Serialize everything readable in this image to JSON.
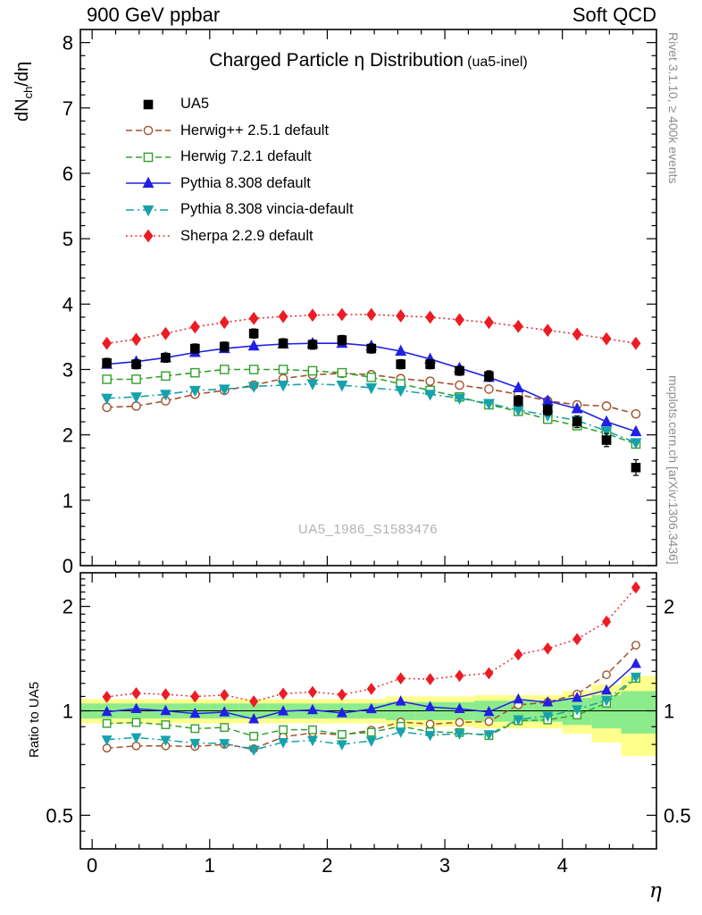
{
  "header": {
    "left": "900 GeV ppbar",
    "right": "Soft QCD"
  },
  "title": {
    "main": "Charged Particle η Distribution",
    "suffix": "(ua5-inel)"
  },
  "watermark": "UA5_1986_S1583476",
  "side_notes": {
    "top_right": "Rivet 3.1.10, ≥ 400k events",
    "bottom_right": "mcplots.cern.ch [arXiv:1306.3436]"
  },
  "axes": {
    "y_main": {
      "pre": "dN",
      "sub": "ch",
      "post": "/dη"
    },
    "y_ratio_label": "Ratio to UA5",
    "x_label": "η",
    "x_ticks": [
      0,
      1,
      2,
      3,
      4
    ],
    "y_main_ticks": [
      0,
      1,
      2,
      3,
      4,
      5,
      6,
      7,
      8
    ],
    "y_ratio_ticks": [
      0.5,
      1,
      2
    ]
  },
  "chart_data": {
    "type": "line",
    "title": "Charged Particle η Distribution (ua5-inel)",
    "xlabel": "η",
    "ylabel": "dN_ch/dη",
    "x_range": [
      -0.1,
      4.8
    ],
    "main_panel": {
      "ylim": [
        0,
        8.2
      ],
      "scale": "linear"
    },
    "ratio_panel": {
      "ylim": [
        0.4,
        2.5
      ],
      "scale": "log",
      "label": "Ratio to UA5",
      "reference": "UA5"
    },
    "x": [
      0.125,
      0.375,
      0.625,
      0.875,
      1.125,
      1.375,
      1.625,
      1.875,
      2.125,
      2.375,
      2.625,
      2.875,
      3.125,
      3.375,
      3.625,
      3.875,
      4.125,
      4.375,
      4.625
    ],
    "series": [
      {
        "name": "UA5",
        "color": "#000000",
        "marker": "square-filled",
        "line": "none",
        "values": [
          3.1,
          3.08,
          3.18,
          3.32,
          3.35,
          3.55,
          3.4,
          3.38,
          3.45,
          3.32,
          3.08,
          3.08,
          2.98,
          2.9,
          2.52,
          2.38,
          2.2,
          1.92,
          1.5
        ],
        "errors": [
          0.07,
          0.07,
          0.07,
          0.07,
          0.07,
          0.07,
          0.07,
          0.07,
          0.07,
          0.07,
          0.07,
          0.07,
          0.07,
          0.08,
          0.08,
          0.08,
          0.09,
          0.1,
          0.12
        ]
      },
      {
        "name": "Herwig++ 2.5.1 default",
        "color": "#a0522d",
        "marker": "circle-open",
        "line": "dashed",
        "values": [
          2.42,
          2.44,
          2.52,
          2.62,
          2.68,
          2.76,
          2.86,
          2.92,
          2.94,
          2.92,
          2.86,
          2.82,
          2.76,
          2.7,
          2.62,
          2.52,
          2.46,
          2.44,
          2.32
        ]
      },
      {
        "name": "Herwig 7.2.1 default",
        "color": "#33a02c",
        "marker": "square-open",
        "line": "dashed",
        "values": [
          2.85,
          2.85,
          2.9,
          2.95,
          3.0,
          3.0,
          3.0,
          2.98,
          2.95,
          2.88,
          2.78,
          2.68,
          2.58,
          2.46,
          2.36,
          2.24,
          2.14,
          2.02,
          1.86
        ]
      },
      {
        "name": "Pythia 8.308 default",
        "color": "#2020e6",
        "marker": "triangle-up-filled",
        "line": "solid",
        "values": [
          3.08,
          3.12,
          3.18,
          3.26,
          3.32,
          3.36,
          3.39,
          3.4,
          3.4,
          3.36,
          3.28,
          3.16,
          3.02,
          2.88,
          2.72,
          2.52,
          2.4,
          2.2,
          2.05
        ]
      },
      {
        "name": "Pythia 8.308 vincia-default",
        "color": "#16a2ac",
        "marker": "triangle-down-filled",
        "line": "dashdot",
        "values": [
          2.56,
          2.58,
          2.62,
          2.68,
          2.7,
          2.74,
          2.76,
          2.78,
          2.76,
          2.72,
          2.68,
          2.62,
          2.56,
          2.48,
          2.38,
          2.3,
          2.22,
          2.06,
          1.88
        ]
      },
      {
        "name": "Sherpa 2.2.9 default",
        "color": "#ec1c24",
        "marker": "diamond-filled",
        "line": "dotted",
        "values": [
          3.4,
          3.46,
          3.55,
          3.65,
          3.72,
          3.78,
          3.81,
          3.83,
          3.84,
          3.84,
          3.82,
          3.8,
          3.76,
          3.72,
          3.66,
          3.6,
          3.54,
          3.47,
          3.4
        ]
      }
    ],
    "bands": {
      "bin_edges": [
        -0.1,
        0.25,
        0.5,
        0.75,
        1.0,
        1.25,
        1.5,
        1.75,
        2.0,
        2.25,
        2.5,
        2.75,
        3.0,
        3.25,
        3.5,
        3.75,
        4.0,
        4.25,
        4.5,
        4.8
      ],
      "green_halfwidth": [
        0.05,
        0.05,
        0.05,
        0.05,
        0.05,
        0.05,
        0.05,
        0.05,
        0.05,
        0.05,
        0.06,
        0.06,
        0.06,
        0.07,
        0.07,
        0.07,
        0.09,
        0.11,
        0.14
      ],
      "yellow_halfwidth": [
        0.08,
        0.08,
        0.08,
        0.08,
        0.08,
        0.08,
        0.08,
        0.08,
        0.08,
        0.08,
        0.1,
        0.1,
        0.1,
        0.11,
        0.11,
        0.11,
        0.14,
        0.19,
        0.26
      ],
      "green_color": "#8cec8c",
      "yellow_color": "#ffff8c"
    }
  }
}
